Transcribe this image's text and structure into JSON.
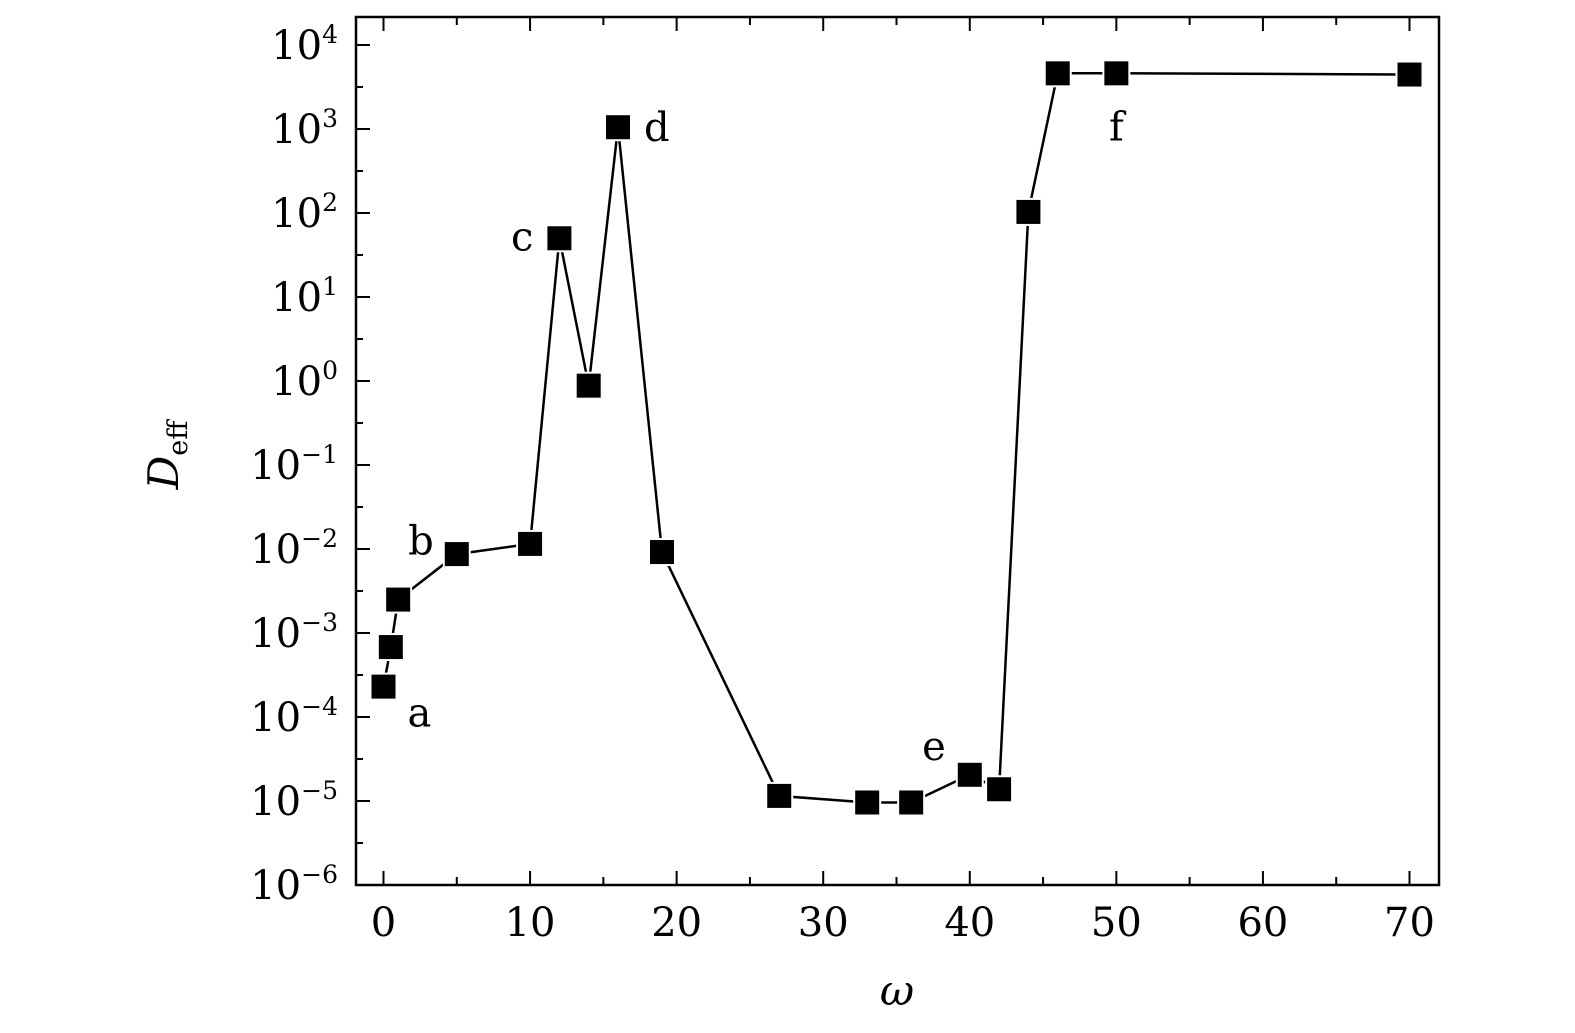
{
  "chart_data": {
    "type": "line",
    "xlabel": "ω",
    "ylabel": "D",
    "ylabel_sub": "eff",
    "xlim": [
      -2,
      72
    ],
    "ylim_log10": [
      -6,
      4.4
    ],
    "yscale": "log",
    "x_ticks": [
      0,
      10,
      20,
      30,
      40,
      50,
      60,
      70
    ],
    "x_tick_labels": [
      "0",
      "10",
      "20",
      "30",
      "40",
      "50",
      "60",
      "70"
    ],
    "y_ticks_log10": [
      -6,
      -5,
      -4,
      -3,
      -2,
      -1,
      0,
      1,
      2,
      3,
      4
    ],
    "y_tick_labels": [
      {
        "base": "10",
        "exp": "−6"
      },
      {
        "base": "10",
        "exp": "−5"
      },
      {
        "base": "10",
        "exp": "−4"
      },
      {
        "base": "10",
        "exp": "−3"
      },
      {
        "base": "10",
        "exp": "−2"
      },
      {
        "base": "10",
        "exp": "−1"
      },
      {
        "base": "10",
        "exp": "0"
      },
      {
        "base": "10",
        "exp": "1"
      },
      {
        "base": "10",
        "exp": "2"
      },
      {
        "base": "10",
        "exp": "3"
      },
      {
        "base": "10",
        "exp": "4"
      }
    ],
    "marker": "filled-square",
    "line_color": "#000000",
    "grid": false,
    "series": [
      {
        "x": [
          0,
          0.5,
          1,
          5,
          10,
          12,
          14,
          16,
          19,
          27,
          33,
          36,
          40,
          42,
          44,
          46,
          50,
          70
        ],
        "y": [
          0.00023,
          0.00068,
          0.0025,
          0.0087,
          0.0115,
          50,
          0.88,
          1050,
          0.0092,
          1.15e-05,
          9.6e-06,
          9.6e-06,
          2.05e-05,
          1.38e-05,
          103,
          4600,
          4600,
          4450
        ]
      }
    ],
    "annotations": [
      {
        "text": "a",
        "x": 0
      },
      {
        "text": "b",
        "x": 1
      },
      {
        "text": "c",
        "x": 12
      },
      {
        "text": "d",
        "x": 16
      },
      {
        "text": "e",
        "x": 40
      },
      {
        "text": "f",
        "x": 50
      }
    ]
  }
}
